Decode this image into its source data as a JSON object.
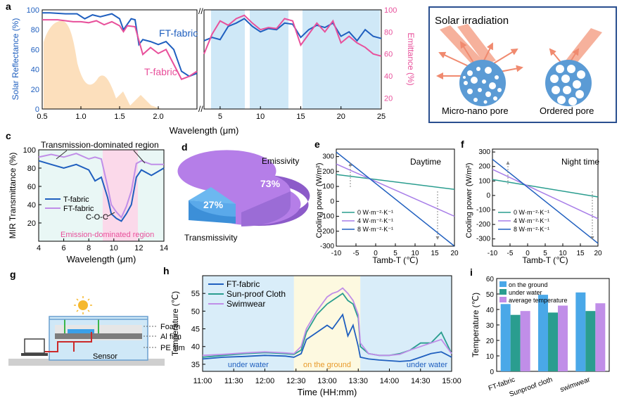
{
  "panel_labels": {
    "a": "a",
    "b": "b",
    "c": "c",
    "d": "d",
    "e": "e",
    "f": "f",
    "g": "g",
    "h": "h",
    "i": "i"
  },
  "colors": {
    "blue": "#1f5fbf",
    "pink": "#e8509b",
    "lightblue": "#cfe8f7",
    "orange": "#f9c98f",
    "teal": "#2a9d8f",
    "purple": "#c08ee8",
    "violet": "#a77de8",
    "skyblue": "#4aa8e8",
    "salmon": "#f4a38b",
    "yellow": "#fdf8d8",
    "pinkbg": "#fbd9ea",
    "greenbg": "#dff3f1"
  },
  "chart_data": [
    {
      "id": "a",
      "type": "line",
      "ylabel_left": "Solar Reflectance (%)",
      "ylabel_right": "Emittance (%)",
      "xlabel": "Wavelength (μm)",
      "xticks_left": [
        "0.5",
        "1.0",
        "1.5",
        "2.0"
      ],
      "xticks_left_values": [
        0.5,
        1.0,
        1.5,
        2.0
      ],
      "xticks_right": [
        "5",
        "10",
        "15",
        "20",
        "25"
      ],
      "xticks_right_values": [
        5,
        10,
        15,
        20,
        25
      ],
      "yticks_left": [
        "0",
        "20",
        "40",
        "60",
        "80",
        "100"
      ],
      "yticks_left_values": [
        0,
        20,
        40,
        60,
        80,
        100
      ],
      "yticks_right": [
        "20",
        "40",
        "60",
        "80",
        "100"
      ],
      "yticks_right_values": [
        20,
        40,
        60,
        80,
        100
      ],
      "xlim_left": [
        0.5,
        2.5
      ],
      "xlim_right": [
        3,
        25
      ],
      "ylim_left": [
        0,
        100
      ],
      "ylim_right": [
        10,
        100
      ],
      "series": [
        {
          "name": "FT-fabric",
          "axis": "left",
          "segment": "left",
          "x": [
            0.5,
            0.6,
            0.8,
            0.95,
            1.05,
            1.15,
            1.25,
            1.4,
            1.5,
            1.55,
            1.65,
            1.7,
            1.75,
            1.8,
            1.9,
            2.0,
            2.1,
            2.2,
            2.3,
            2.4,
            2.5
          ],
          "y": [
            97,
            97,
            96,
            96,
            91,
            95,
            93,
            96,
            91,
            80,
            91,
            90,
            65,
            70,
            68,
            65,
            68,
            60,
            38,
            33,
            36
          ]
        },
        {
          "name": "T-fabric",
          "axis": "left",
          "segment": "left",
          "x": [
            0.5,
            0.7,
            0.9,
            1.0,
            1.1,
            1.2,
            1.3,
            1.4,
            1.5,
            1.55,
            1.6,
            1.7,
            1.8,
            1.9,
            2.0,
            2.1,
            2.2,
            2.3,
            2.4,
            2.5
          ],
          "y": [
            90,
            90,
            88,
            88,
            87,
            89,
            85,
            88,
            84,
            78,
            84,
            83,
            55,
            62,
            56,
            60,
            45,
            30,
            33,
            38
          ]
        },
        {
          "name": "FT-fabric",
          "axis": "right",
          "segment": "right",
          "x": [
            3,
            4,
            5,
            6,
            7,
            8,
            9,
            10,
            11,
            12,
            13,
            14,
            15,
            16,
            17,
            18,
            19,
            20,
            21,
            22,
            23,
            24,
            25
          ],
          "y": [
            72,
            75,
            73,
            85,
            88,
            92,
            85,
            80,
            83,
            82,
            88,
            87,
            75,
            82,
            86,
            84,
            88,
            76,
            80,
            72,
            82,
            76,
            74
          ]
        },
        {
          "name": "T-fabric",
          "axis": "right",
          "segment": "right",
          "x": [
            3,
            4,
            5,
            6,
            7,
            8,
            9,
            10,
            11,
            12,
            13,
            14,
            15,
            16,
            17,
            18,
            19,
            20,
            21,
            22,
            23,
            24,
            25
          ],
          "y": [
            60,
            78,
            90,
            86,
            92,
            95,
            88,
            82,
            84,
            83,
            92,
            90,
            68,
            78,
            88,
            80,
            90,
            70,
            76,
            70,
            66,
            60,
            58
          ]
        }
      ],
      "labels": {
        "ft": "FT-fabric",
        "t": "T-fabric"
      }
    },
    {
      "id": "c",
      "type": "line",
      "ylabel": "MIR Transmittance (%)",
      "xlabel": "Wavelength (μm)",
      "xticks": [
        "4",
        "6",
        "8",
        "10",
        "12",
        "14"
      ],
      "xticks_values": [
        4,
        6,
        8,
        10,
        12,
        14
      ],
      "yticks": [
        "20",
        "40",
        "60",
        "80",
        "100"
      ],
      "yticks_values": [
        20,
        40,
        60,
        80,
        100
      ],
      "xlim": [
        4,
        14
      ],
      "ylim": [
        0,
        100
      ],
      "series": [
        {
          "name": "T-fabric",
          "x": [
            4,
            5,
            6,
            7,
            8,
            8.5,
            9,
            9.5,
            9.8,
            10.2,
            10.6,
            11,
            11.4,
            11.8,
            12.2,
            13,
            14
          ],
          "y": [
            88,
            84,
            80,
            84,
            78,
            66,
            70,
            48,
            30,
            25,
            22,
            30,
            40,
            70,
            78,
            72,
            80
          ]
        },
        {
          "name": "FT-fabric",
          "x": [
            4,
            5,
            6,
            7,
            8,
            8.5,
            9,
            9.5,
            9.8,
            10.2,
            10.6,
            11,
            11.4,
            11.8,
            12.2,
            13,
            14
          ],
          "y": [
            92,
            95,
            92,
            96,
            90,
            92,
            90,
            60,
            40,
            32,
            26,
            38,
            55,
            85,
            88,
            84,
            84
          ]
        }
      ],
      "annotations": {
        "top": "Transmission-dominated region",
        "bottom": "Emission-dominated region",
        "coc": "C-O-C"
      }
    },
    {
      "id": "d",
      "type": "pie",
      "slices": [
        {
          "name": "Emissivity",
          "value": 73,
          "label": "73%"
        },
        {
          "name": "Transmissivity",
          "value": 27,
          "label": "27%"
        }
      ]
    },
    {
      "id": "e",
      "type": "line",
      "title": "Daytime",
      "ylabel": "Cooling power (W/m²)",
      "xlabel": "Tamb-T (℃)",
      "xticks": [
        "-10",
        "-5",
        "0",
        "5",
        "10",
        "15",
        "20"
      ],
      "xticks_values": [
        -10,
        -5,
        0,
        5,
        10,
        15,
        20
      ],
      "yticks": [
        "-300",
        "-200",
        "-100",
        "0",
        "100",
        "200",
        "300"
      ],
      "yticks_values": [
        -300,
        -200,
        -100,
        0,
        100,
        200,
        300
      ],
      "xlim": [
        -10,
        20
      ],
      "ylim": [
        -300,
        350
      ],
      "series": [
        {
          "name": "0 W·m⁻²·K⁻¹",
          "x": [
            -10,
            20
          ],
          "y": [
            180,
            80
          ]
        },
        {
          "name": "4 W·m⁻²·K⁻¹",
          "x": [
            -10,
            20
          ],
          "y": [
            250,
            -100
          ]
        },
        {
          "name": "8 W·m⁻²·K⁻¹",
          "x": [
            -10,
            20
          ],
          "y": [
            330,
            -300
          ]
        }
      ]
    },
    {
      "id": "f",
      "type": "line",
      "title": "Night time",
      "ylabel": "Cooling power (W/m²)",
      "xlabel": "Tamb-T (℃)",
      "xticks": [
        "-10",
        "-5",
        "0",
        "5",
        "10",
        "15",
        "20"
      ],
      "xticks_values": [
        -10,
        -5,
        0,
        5,
        10,
        15,
        20
      ],
      "yticks": [
        "-300",
        "-200",
        "-100",
        "0",
        "100",
        "200",
        "300"
      ],
      "yticks_values": [
        -300,
        -200,
        -100,
        0,
        100,
        200,
        300
      ],
      "xlim": [
        -10,
        20
      ],
      "ylim": [
        -350,
        320
      ],
      "series": [
        {
          "name": "0 W·m⁻²·K⁻¹",
          "x": [
            -10,
            20
          ],
          "y": [
            110,
            -10
          ]
        },
        {
          "name": "4 W·m⁻²·K⁻¹",
          "x": [
            -10,
            20
          ],
          "y": [
            180,
            -160
          ]
        },
        {
          "name": "8 W·m⁻²·K⁻¹",
          "x": [
            -10,
            20
          ],
          "y": [
            250,
            -330
          ]
        }
      ]
    },
    {
      "id": "h",
      "type": "line",
      "ylabel": "Temperature (℃)",
      "xlabel": "Time (HH:mm)",
      "xticks": [
        "11:00",
        "11:30",
        "12:00",
        "12:30",
        "13:00",
        "13:30",
        "14:00",
        "14:30",
        "15:00"
      ],
      "xticks_values": [
        0,
        30,
        60,
        90,
        120,
        150,
        180,
        210,
        240
      ],
      "yticks": [
        "35",
        "40",
        "45",
        "50",
        "55"
      ],
      "yticks_values": [
        35,
        40,
        45,
        50,
        55
      ],
      "xlim": [
        0,
        240
      ],
      "ylim": [
        33,
        60
      ],
      "regions": [
        {
          "label": "under water",
          "from": 0,
          "to": 88
        },
        {
          "label": "on the ground",
          "from": 88,
          "to": 152
        },
        {
          "label": "under water",
          "from": 152,
          "to": 240
        }
      ],
      "series": [
        {
          "name": "FT-fabric",
          "x": [
            0,
            20,
            40,
            60,
            80,
            88,
            95,
            100,
            110,
            120,
            125,
            130,
            135,
            140,
            145,
            150,
            152,
            160,
            170,
            180,
            190,
            200,
            210,
            220,
            230,
            240
          ],
          "y": [
            36.5,
            37,
            37.2,
            37.5,
            37.3,
            37,
            38,
            42,
            44,
            46,
            45,
            47,
            49,
            43,
            46,
            40,
            37,
            36.5,
            36.2,
            36,
            35.8,
            36,
            37,
            38,
            38.5,
            37
          ]
        },
        {
          "name": "Sun-proof Cloth",
          "x": [
            0,
            20,
            40,
            60,
            80,
            88,
            95,
            100,
            110,
            120,
            125,
            130,
            135,
            140,
            145,
            150,
            152,
            160,
            170,
            180,
            190,
            200,
            210,
            220,
            230,
            240
          ],
          "y": [
            37,
            37.5,
            38,
            38.3,
            38,
            37.8,
            39,
            44,
            49,
            52,
            53,
            54,
            55,
            53,
            52,
            48,
            40,
            38,
            37.5,
            37.5,
            38,
            39,
            41,
            41,
            44,
            38
          ]
        },
        {
          "name": "Swimwear",
          "x": [
            0,
            20,
            40,
            60,
            80,
            88,
            95,
            100,
            110,
            120,
            125,
            130,
            135,
            140,
            145,
            150,
            152,
            160,
            170,
            180,
            190,
            200,
            210,
            220,
            230,
            240
          ],
          "y": [
            37.5,
            37.8,
            38.2,
            38.5,
            38.2,
            38,
            40,
            45,
            50,
            54,
            55,
            55.5,
            56.5,
            55,
            53,
            49,
            41,
            38,
            37.5,
            37.5,
            37.8,
            39,
            40,
            41,
            42,
            38
          ]
        }
      ]
    },
    {
      "id": "i",
      "type": "bar",
      "ylabel": "Temperature (℃)",
      "categories": [
        "FT-fabric",
        "Sunproof cloth",
        "swimwear"
      ],
      "yticks": [
        "0",
        "10",
        "20",
        "30",
        "40",
        "50",
        "60"
      ],
      "yticks_values": [
        0,
        10,
        20,
        30,
        40,
        50,
        60
      ],
      "ylim": [
        0,
        60
      ],
      "series": [
        {
          "name": "on the ground",
          "values": [
            43.5,
            49.5,
            51.0
          ]
        },
        {
          "name": "under water",
          "values": [
            36.5,
            38.0,
            39.0
          ]
        },
        {
          "name": "average temperature",
          "values": [
            39.0,
            42.5,
            44.0
          ]
        }
      ]
    }
  ],
  "panel_b": {
    "title": "Solar irradiation",
    "left_label": "Micro-nano pore",
    "right_label": "Ordered pore"
  },
  "panel_g": {
    "foam": "Foam",
    "al": "Al film",
    "pe": "PE film",
    "sensor": "Sensor"
  }
}
